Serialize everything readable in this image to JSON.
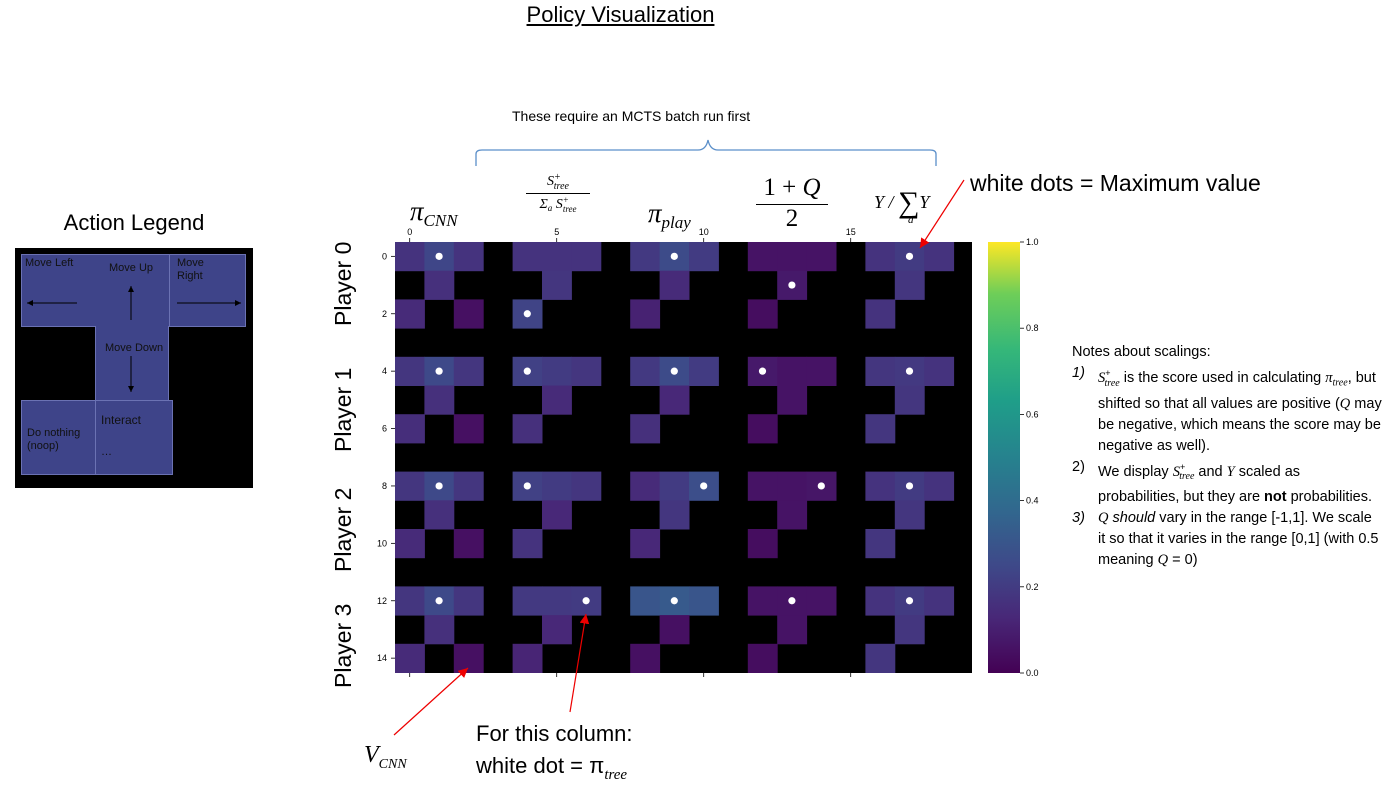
{
  "page": {
    "title": "Policy Visualization",
    "mcts_note": "These require an MCTS batch run first",
    "max_note": "white dots = Maximum value",
    "vcnn_label": "V",
    "vcnn_sub": "CNN",
    "tree_label_line1": "For this column:",
    "tree_label_line2": "white dot = π",
    "tree_label_sub": "tree"
  },
  "legend": {
    "title": "Action Legend",
    "move_left": "Move Left",
    "move_up": "Move Up",
    "move_right": "Move\nRight",
    "move_down": "Move Down",
    "do_nothing": "Do nothing\n(noop)",
    "interact": "Interact",
    "interact_extra": "…"
  },
  "column_headers": [
    "π_CNN",
    "S+_tree / Σ_a S+_tree",
    "π_play",
    "(1 + Q) / 2",
    "Y / Σ_a Y"
  ],
  "row_labels": [
    "Player 0",
    "Player 1",
    "Player 2",
    "Player 3"
  ],
  "notes": {
    "heading": "Notes about scalings:",
    "items": [
      "1) S+tree is the score used in calculating πtree, but shifted so that all values are positive (Q may be negative, which means the score may be negative as well).",
      "2) We display S+tree and Y scaled as probabilities, but they are not probabilities.",
      "3) Q should vary in the range [-1,1]. We scale it so that it varies in the range [0,1] (with 0.5 meaning Q = 0)"
    ]
  },
  "chart_data": {
    "type": "heatmap",
    "colormap": "viridis",
    "colorbar": {
      "range": [
        0.0,
        1.0
      ],
      "ticks": [
        "0.0",
        "0.2",
        "0.4",
        "0.6",
        "0.8",
        "1.0"
      ]
    },
    "x_ticks": [
      "0",
      "5",
      "10",
      "15"
    ],
    "y_ticks": [
      "0",
      "2",
      "4",
      "6",
      "8",
      "10",
      "12",
      "14"
    ],
    "xlim": [
      0,
      18.5
    ],
    "ylim": [
      0,
      15
    ],
    "grid": false,
    "rows": 15,
    "cols": 19,
    "cells": [
      {
        "c": 0,
        "r": 0,
        "v": 0.17
      },
      {
        "c": 1,
        "r": 0,
        "v": 0.24
      },
      {
        "c": 2,
        "r": 0,
        "v": 0.17
      },
      {
        "c": 1,
        "r": 1,
        "v": 0.16
      },
      {
        "c": 0,
        "r": 2,
        "v": 0.14
      },
      {
        "c": 2,
        "r": 2,
        "v": 0.05
      },
      {
        "c": 4,
        "r": 0,
        "v": 0.17
      },
      {
        "c": 5,
        "r": 0,
        "v": 0.17
      },
      {
        "c": 6,
        "r": 0,
        "v": 0.17
      },
      {
        "c": 5,
        "r": 1,
        "v": 0.18
      },
      {
        "c": 4,
        "r": 2,
        "v": 0.23
      },
      {
        "c": 8,
        "r": 0,
        "v": 0.19
      },
      {
        "c": 9,
        "r": 0,
        "v": 0.26
      },
      {
        "c": 10,
        "r": 0,
        "v": 0.2
      },
      {
        "c": 9,
        "r": 1,
        "v": 0.14
      },
      {
        "c": 8,
        "r": 2,
        "v": 0.11
      },
      {
        "c": 12,
        "r": 0,
        "v": 0.06
      },
      {
        "c": 13,
        "r": 0,
        "v": 0.06
      },
      {
        "c": 14,
        "r": 0,
        "v": 0.06
      },
      {
        "c": 13,
        "r": 1,
        "v": 0.08
      },
      {
        "c": 12,
        "r": 2,
        "v": 0.04
      },
      {
        "c": 16,
        "r": 0,
        "v": 0.17
      },
      {
        "c": 17,
        "r": 0,
        "v": 0.2
      },
      {
        "c": 18,
        "r": 0,
        "v": 0.17
      },
      {
        "c": 17,
        "r": 1,
        "v": 0.18
      },
      {
        "c": 16,
        "r": 2,
        "v": 0.17
      },
      {
        "c": 0,
        "r": 4,
        "v": 0.18
      },
      {
        "c": 1,
        "r": 4,
        "v": 0.25
      },
      {
        "c": 2,
        "r": 4,
        "v": 0.18
      },
      {
        "c": 1,
        "r": 5,
        "v": 0.16
      },
      {
        "c": 0,
        "r": 6,
        "v": 0.15
      },
      {
        "c": 2,
        "r": 6,
        "v": 0.05
      },
      {
        "c": 4,
        "r": 4,
        "v": 0.22
      },
      {
        "c": 5,
        "r": 4,
        "v": 0.2
      },
      {
        "c": 6,
        "r": 4,
        "v": 0.18
      },
      {
        "c": 5,
        "r": 5,
        "v": 0.14
      },
      {
        "c": 4,
        "r": 6,
        "v": 0.16
      },
      {
        "c": 8,
        "r": 4,
        "v": 0.19
      },
      {
        "c": 9,
        "r": 4,
        "v": 0.26
      },
      {
        "c": 10,
        "r": 4,
        "v": 0.2
      },
      {
        "c": 9,
        "r": 5,
        "v": 0.13
      },
      {
        "c": 8,
        "r": 6,
        "v": 0.16
      },
      {
        "c": 12,
        "r": 4,
        "v": 0.08
      },
      {
        "c": 13,
        "r": 4,
        "v": 0.06
      },
      {
        "c": 14,
        "r": 4,
        "v": 0.06
      },
      {
        "c": 13,
        "r": 5,
        "v": 0.06
      },
      {
        "c": 12,
        "r": 6,
        "v": 0.04
      },
      {
        "c": 16,
        "r": 4,
        "v": 0.18
      },
      {
        "c": 17,
        "r": 4,
        "v": 0.19
      },
      {
        "c": 18,
        "r": 4,
        "v": 0.17
      },
      {
        "c": 17,
        "r": 5,
        "v": 0.18
      },
      {
        "c": 16,
        "r": 6,
        "v": 0.18
      },
      {
        "c": 0,
        "r": 8,
        "v": 0.18
      },
      {
        "c": 1,
        "r": 8,
        "v": 0.25
      },
      {
        "c": 2,
        "r": 8,
        "v": 0.18
      },
      {
        "c": 1,
        "r": 9,
        "v": 0.16
      },
      {
        "c": 0,
        "r": 10,
        "v": 0.14
      },
      {
        "c": 2,
        "r": 10,
        "v": 0.05
      },
      {
        "c": 4,
        "r": 8,
        "v": 0.22
      },
      {
        "c": 5,
        "r": 8,
        "v": 0.2
      },
      {
        "c": 6,
        "r": 8,
        "v": 0.18
      },
      {
        "c": 5,
        "r": 9,
        "v": 0.13
      },
      {
        "c": 4,
        "r": 10,
        "v": 0.17
      },
      {
        "c": 8,
        "r": 8,
        "v": 0.14
      },
      {
        "c": 9,
        "r": 8,
        "v": 0.2
      },
      {
        "c": 10,
        "r": 8,
        "v": 0.27
      },
      {
        "c": 9,
        "r": 9,
        "v": 0.18
      },
      {
        "c": 8,
        "r": 10,
        "v": 0.13
      },
      {
        "c": 12,
        "r": 8,
        "v": 0.06
      },
      {
        "c": 13,
        "r": 8,
        "v": 0.06
      },
      {
        "c": 14,
        "r": 8,
        "v": 0.07
      },
      {
        "c": 13,
        "r": 9,
        "v": 0.06
      },
      {
        "c": 12,
        "r": 10,
        "v": 0.04
      },
      {
        "c": 16,
        "r": 8,
        "v": 0.17
      },
      {
        "c": 17,
        "r": 8,
        "v": 0.2
      },
      {
        "c": 18,
        "r": 8,
        "v": 0.17
      },
      {
        "c": 17,
        "r": 9,
        "v": 0.18
      },
      {
        "c": 16,
        "r": 10,
        "v": 0.18
      },
      {
        "c": 0,
        "r": 12,
        "v": 0.18
      },
      {
        "c": 1,
        "r": 12,
        "v": 0.25
      },
      {
        "c": 2,
        "r": 12,
        "v": 0.18
      },
      {
        "c": 1,
        "r": 13,
        "v": 0.16
      },
      {
        "c": 0,
        "r": 14,
        "v": 0.14
      },
      {
        "c": 2,
        "r": 14,
        "v": 0.05
      },
      {
        "c": 4,
        "r": 12,
        "v": 0.19
      },
      {
        "c": 5,
        "r": 12,
        "v": 0.19
      },
      {
        "c": 6,
        "r": 12,
        "v": 0.2
      },
      {
        "c": 5,
        "r": 13,
        "v": 0.13
      },
      {
        "c": 4,
        "r": 14,
        "v": 0.12
      },
      {
        "c": 8,
        "r": 12,
        "v": 0.3
      },
      {
        "c": 9,
        "r": 12,
        "v": 0.32
      },
      {
        "c": 10,
        "r": 12,
        "v": 0.3
      },
      {
        "c": 9,
        "r": 13,
        "v": 0.05
      },
      {
        "c": 8,
        "r": 14,
        "v": 0.05
      },
      {
        "c": 12,
        "r": 12,
        "v": 0.06
      },
      {
        "c": 13,
        "r": 12,
        "v": 0.06
      },
      {
        "c": 14,
        "r": 12,
        "v": 0.06
      },
      {
        "c": 13,
        "r": 13,
        "v": 0.06
      },
      {
        "c": 12,
        "r": 14,
        "v": 0.04
      },
      {
        "c": 16,
        "r": 12,
        "v": 0.17
      },
      {
        "c": 17,
        "r": 12,
        "v": 0.2
      },
      {
        "c": 18,
        "r": 12,
        "v": 0.17
      },
      {
        "c": 17,
        "r": 13,
        "v": 0.18
      },
      {
        "c": 16,
        "r": 14,
        "v": 0.18
      }
    ],
    "max_dots": [
      {
        "c": 1,
        "r": 0
      },
      {
        "c": 4,
        "r": 2
      },
      {
        "c": 9,
        "r": 0
      },
      {
        "c": 13,
        "r": 1
      },
      {
        "c": 17,
        "r": 0
      },
      {
        "c": 1,
        "r": 4
      },
      {
        "c": 4,
        "r": 4
      },
      {
        "c": 9,
        "r": 4
      },
      {
        "c": 12,
        "r": 4
      },
      {
        "c": 17,
        "r": 4
      },
      {
        "c": 1,
        "r": 8
      },
      {
        "c": 4,
        "r": 8
      },
      {
        "c": 10,
        "r": 8
      },
      {
        "c": 14,
        "r": 8
      },
      {
        "c": 17,
        "r": 8
      },
      {
        "c": 1,
        "r": 12
      },
      {
        "c": 6,
        "r": 12
      },
      {
        "c": 9,
        "r": 12
      },
      {
        "c": 13,
        "r": 12
      },
      {
        "c": 17,
        "r": 12
      }
    ]
  }
}
